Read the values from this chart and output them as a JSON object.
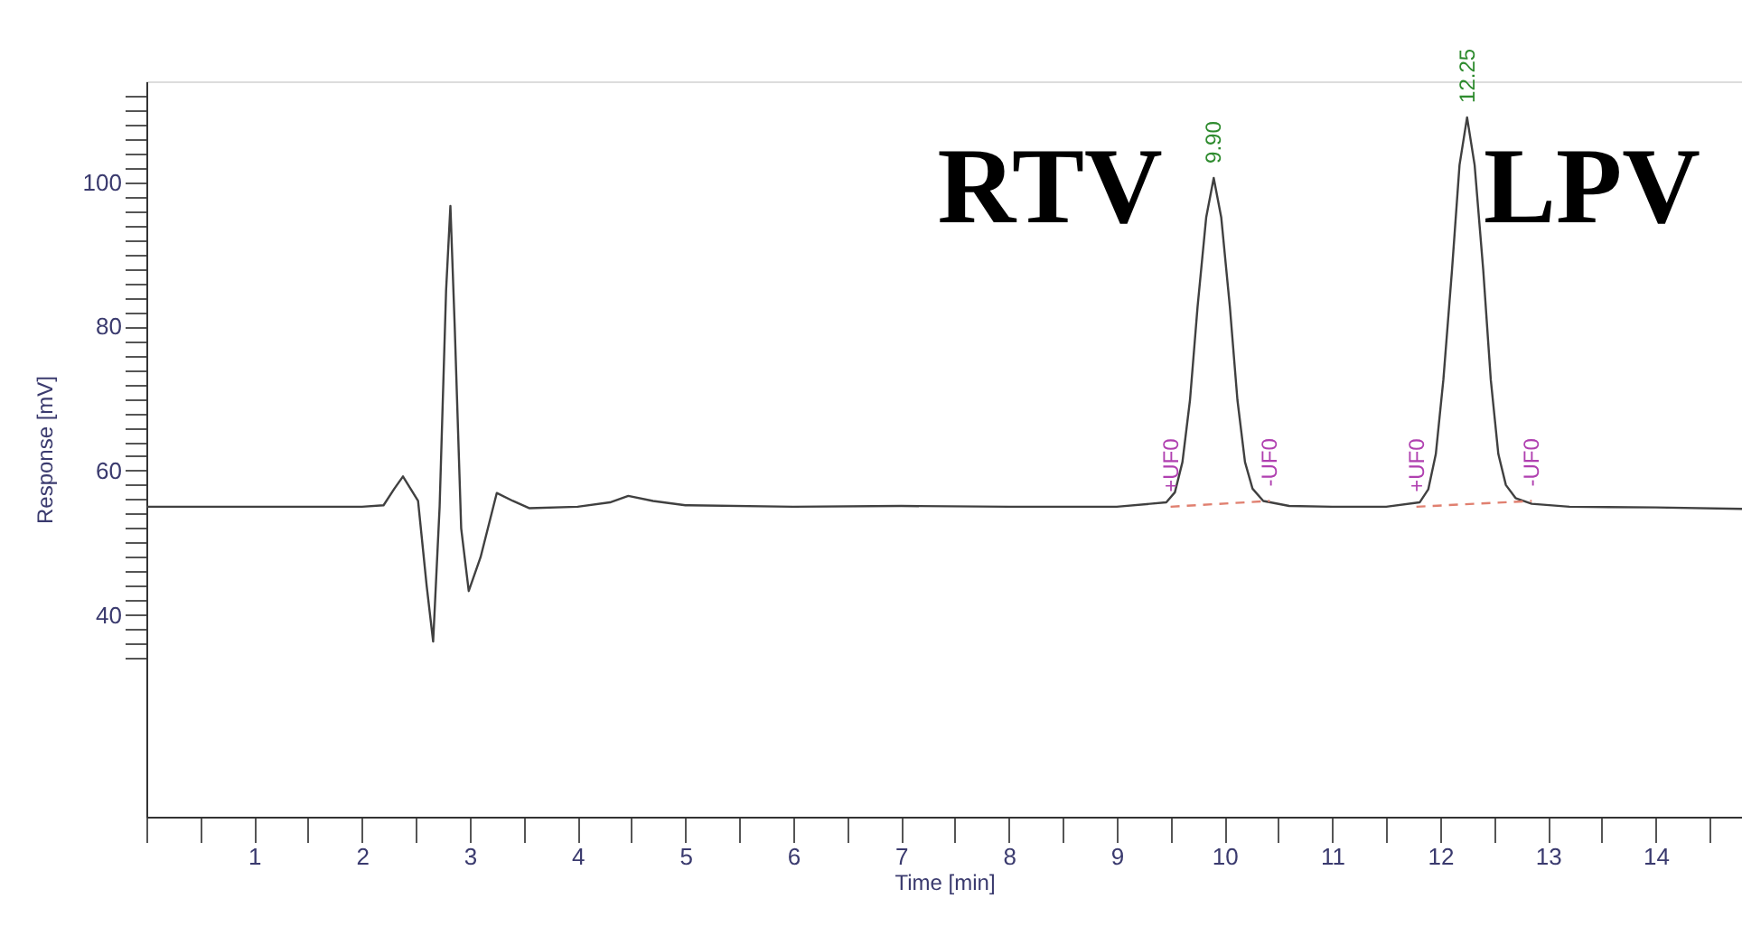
{
  "chart_data": {
    "type": "line",
    "xlabel": "Time [min]",
    "ylabel": "Response [mV]",
    "xlim": [
      0,
      14.8
    ],
    "ylim": [
      12,
      114
    ],
    "xticks": [
      {
        "value": 0,
        "label": null
      },
      {
        "value": 0.5,
        "label": null
      },
      1,
      {
        "value": 1.5,
        "label": null
      },
      2,
      {
        "value": 2.5,
        "label": null
      },
      3,
      {
        "value": 3.5,
        "label": null
      },
      4,
      {
        "value": 4.5,
        "label": null
      },
      5,
      {
        "value": 5.5,
        "label": null
      },
      6,
      {
        "value": 6.5,
        "label": null
      },
      7,
      {
        "value": 7.5,
        "label": null
      },
      8,
      {
        "value": 8.5,
        "label": null
      },
      9,
      {
        "value": 9.5,
        "label": null
      },
      10,
      {
        "value": 10.5,
        "label": null
      },
      11,
      {
        "value": 11.5,
        "label": null
      },
      12,
      {
        "value": 12.5,
        "label": null
      },
      13,
      {
        "value": 13.5,
        "label": null
      },
      14,
      {
        "value": 14.5,
        "label": null
      }
    ],
    "yticks": [
      {
        "value": 34,
        "label": null
      },
      {
        "value": 36,
        "label": null
      },
      {
        "value": 38,
        "label": null
      },
      40,
      {
        "value": 42,
        "label": null
      },
      {
        "value": 44,
        "label": null
      },
      {
        "value": 46,
        "label": null
      },
      {
        "value": 48,
        "label": null
      },
      {
        "value": 50,
        "label": null
      },
      {
        "value": 52,
        "label": null
      },
      {
        "value": 54,
        "label": null
      },
      {
        "value": 56,
        "label": null
      },
      {
        "value": 58,
        "label": null
      },
      60,
      {
        "value": 62,
        "label": null
      },
      {
        "value": 64,
        "label": null
      },
      {
        "value": 66,
        "label": null
      },
      {
        "value": 68,
        "label": null
      },
      {
        "value": 70,
        "label": null
      },
      {
        "value": 72,
        "label": null
      },
      {
        "value": 74,
        "label": null
      },
      {
        "value": 76,
        "label": null
      },
      {
        "value": 78,
        "label": null
      },
      80,
      {
        "value": 82,
        "label": null
      },
      {
        "value": 84,
        "label": null
      },
      {
        "value": 86,
        "label": null
      },
      {
        "value": 88,
        "label": null
      },
      {
        "value": 90,
        "label": null
      },
      {
        "value": 92,
        "label": null
      },
      {
        "value": 94,
        "label": null
      },
      {
        "value": 96,
        "label": null
      },
      {
        "value": 98,
        "label": null
      },
      100,
      {
        "value": 102,
        "label": null
      },
      {
        "value": 104,
        "label": null
      },
      {
        "value": 106,
        "label": null
      },
      {
        "value": 108,
        "label": null
      },
      {
        "value": 110,
        "label": null
      },
      {
        "value": 112,
        "label": null
      }
    ],
    "grid": false,
    "marker": "none",
    "series": [
      {
        "color": "#404040",
        "line_style": "solid",
        "x": [
          0,
          1.0,
          2.0,
          2.2,
          2.3,
          2.38,
          2.52,
          2.6,
          2.66,
          2.72,
          2.78,
          2.82,
          2.86,
          2.92,
          2.99,
          3.1,
          3.25,
          3.4,
          3.55,
          4.0,
          4.3,
          4.47,
          4.7,
          5.0,
          6.0,
          7.0,
          8.0,
          9.0,
          9.46,
          9.54,
          9.61,
          9.68,
          9.75,
          9.83,
          9.9,
          9.97,
          10.05,
          10.12,
          10.19,
          10.26,
          10.36,
          10.6,
          11.0,
          11.5,
          11.81,
          11.89,
          11.96,
          12.03,
          12.11,
          12.18,
          12.25,
          12.32,
          12.4,
          12.47,
          12.54,
          12.61,
          12.7,
          12.85,
          13.2,
          14.0,
          14.8
        ],
        "values": [
          55,
          55,
          55,
          55.2,
          57.5,
          59.2,
          55.8,
          44,
          36.3,
          55,
          85,
          96.7,
          80,
          52,
          43.3,
          48,
          56.9,
          55.8,
          54.8,
          55,
          55.6,
          56.5,
          55.8,
          55.2,
          55,
          55.1,
          55,
          55,
          55.6,
          57,
          61.2,
          69.8,
          82.7,
          95.1,
          100.6,
          95.1,
          82.7,
          69.8,
          61.2,
          57.5,
          55.8,
          55.1,
          55,
          55,
          55.6,
          57.4,
          62.3,
          72.6,
          87.8,
          102.4,
          109,
          102.4,
          87.8,
          72.6,
          62.3,
          58,
          56.2,
          55.4,
          55,
          54.9,
          54.7
        ]
      },
      {
        "color": "#e08070",
        "line_style": "dashed",
        "x": [
          9.5,
          10.42
        ],
        "values": [
          55,
          55.8
        ]
      },
      {
        "color": "#e08070",
        "line_style": "dashed",
        "x": [
          11.78,
          12.85
        ],
        "values": [
          55,
          55.8
        ]
      }
    ],
    "annotations": [
      "RTV",
      "LPV",
      {
        "text": "9.90",
        "x": 9.9,
        "y": 100.6
      },
      {
        "text": "12.25",
        "x": 12.25,
        "y": 109
      },
      {
        "text": "+UF0",
        "x": 9.5,
        "y": 55
      },
      {
        "text": "-UF0",
        "x": 10.42,
        "y": 55.8
      },
      {
        "text": "+UF0",
        "x": 11.78,
        "y": 55
      },
      {
        "text": "-UF0",
        "x": 12.85,
        "y": 55.8
      }
    ]
  }
}
